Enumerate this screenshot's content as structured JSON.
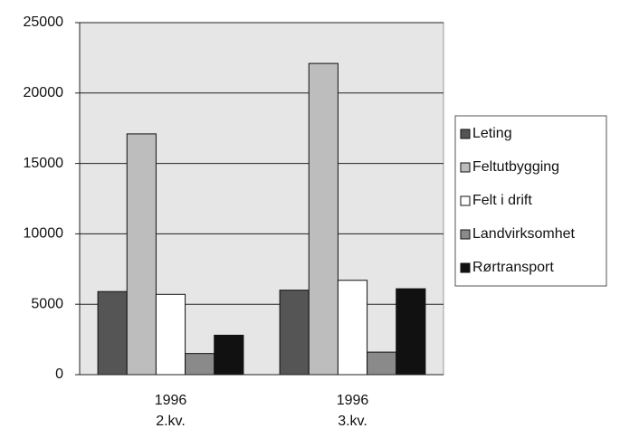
{
  "chart_data": {
    "type": "bar",
    "categories": [
      [
        "1996",
        "2.kv."
      ],
      [
        "1996",
        "3.kv."
      ]
    ],
    "series": [
      {
        "name": "Leting",
        "color": "#555555",
        "values": [
          5900,
          6000
        ]
      },
      {
        "name": "Feltutbygging",
        "color": "#bdbdbd",
        "values": [
          17100,
          22100
        ]
      },
      {
        "name": "Felt i drift",
        "color": "#ffffff",
        "values": [
          5700,
          6700
        ]
      },
      {
        "name": "Landvirksomhet",
        "color": "#8a8a8a",
        "values": [
          1500,
          1600
        ]
      },
      {
        "name": "Rørtransport",
        "color": "#111111",
        "values": [
          2800,
          6100
        ]
      }
    ],
    "ylim": [
      0,
      25000
    ],
    "yticks": [
      0,
      5000,
      10000,
      15000,
      20000,
      25000
    ],
    "grid": true,
    "legend": "right"
  }
}
